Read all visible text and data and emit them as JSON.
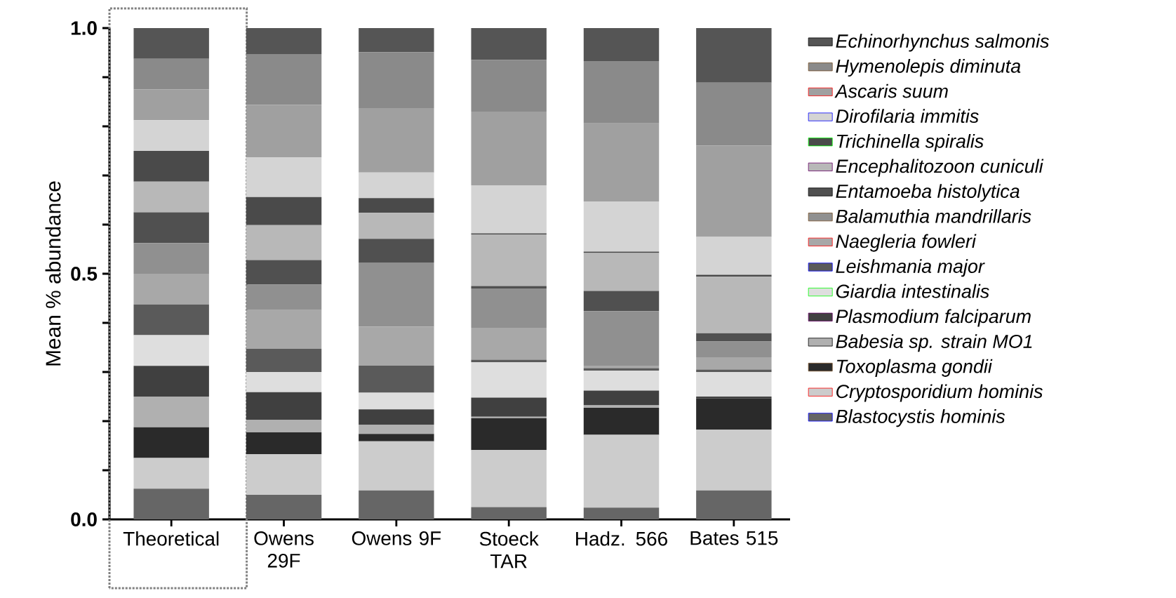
{
  "chart_data": {
    "type": "bar",
    "stacked": true,
    "ylabel": "Mean % abundance",
    "categories": [
      "Theoretical",
      "Owens 29F",
      "Owens 9F",
      "Stoeck TAR",
      "Hadz. 566",
      "Bates 515"
    ],
    "ylim": [
      0,
      1
    ],
    "yticks": [
      {
        "value": 0,
        "label": "0.0"
      },
      {
        "value": 0.1,
        "label": null
      },
      {
        "value": 0.2,
        "label": null
      },
      {
        "value": 0.3,
        "label": null
      },
      {
        "value": 0.4,
        "label": null
      },
      {
        "value": 0.5,
        "label": "0.5"
      },
      {
        "value": 0.6,
        "label": null
      },
      {
        "value": 0.7,
        "label": null
      },
      {
        "value": 0.8,
        "label": null
      },
      {
        "value": 0.9,
        "label": null
      },
      {
        "value": 1,
        "label": "1.0"
      }
    ],
    "legend": "right",
    "series": [
      {
        "name": "Blastocystis hominis",
        "color": "#666666",
        "values": [
          0.0625,
          0.05,
          0.059,
          0.025,
          0.024,
          0.059
        ]
      },
      {
        "name": "Cryptosporidium hominis",
        "color": "#cccccc",
        "values": [
          0.0625,
          0.083,
          0.1,
          0.116,
          0.148,
          0.124
        ]
      },
      {
        "name": "Toxoplasma gondii",
        "color": "#2a2a2a",
        "values": [
          0.0625,
          0.044,
          0.015,
          0.065,
          0.055,
          0.063
        ]
      },
      {
        "name": "Babesia sp. strain MO1",
        "color": "#b0b0b0",
        "values": [
          0.0625,
          0.026,
          0.019,
          0.003,
          0.005,
          null
        ]
      },
      {
        "name": "Plasmodium falciparum",
        "color": "#404040",
        "values": [
          0.0625,
          0.056,
          0.031,
          0.039,
          0.03,
          0.004
        ]
      },
      {
        "name": "Giardia intestinalis",
        "color": "#dedede",
        "values": [
          0.0625,
          0.041,
          0.034,
          0.072,
          0.041,
          0.05
        ]
      },
      {
        "name": "Leishmania major",
        "color": "#5a5a5a",
        "values": [
          0.0625,
          0.047,
          0.055,
          0.005,
          0.005,
          0.005
        ]
      },
      {
        "name": "Naegleria fowleri",
        "color": "#a8a8a8",
        "values": [
          0.0625,
          0.079,
          0.079,
          0.065,
          0.005,
          0.025
        ]
      },
      {
        "name": "Balamuthia mandrillaris",
        "color": "#909090",
        "values": [
          0.0625,
          0.052,
          0.131,
          0.08,
          0.111,
          0.032
        ]
      },
      {
        "name": "Entamoeba histolytica",
        "color": "#505050",
        "values": [
          0.0625,
          0.05,
          0.048,
          0.005,
          0.041,
          0.017
        ]
      },
      {
        "name": "Encephalitozoon cuniculi",
        "color": "#b8b8b8",
        "values": [
          0.0625,
          0.071,
          0.053,
          0.105,
          0.077,
          0.115
        ]
      },
      {
        "name": "Trichinella spiralis",
        "color": "#4a4a4a",
        "values": [
          0.0625,
          0.057,
          0.03,
          0.002,
          0.003,
          0.004
        ]
      },
      {
        "name": "Dirofilaria immitis",
        "color": "#d4d4d4",
        "values": [
          0.0625,
          0.081,
          0.052,
          0.098,
          0.102,
          0.077
        ]
      },
      {
        "name": "Ascaris suum",
        "color": "#a0a0a0",
        "values": [
          0.0625,
          0.107,
          0.131,
          0.15,
          0.159,
          0.186
        ]
      },
      {
        "name": "Hymenolepis diminuta",
        "color": "#8a8a8a",
        "values": [
          0.0625,
          0.103,
          0.114,
          0.105,
          0.127,
          0.128
        ]
      },
      {
        "name": "Echinorhynchus salmonis",
        "color": "#555555",
        "values": [
          0.0625,
          0.053,
          0.049,
          0.065,
          0.067,
          0.111
        ]
      }
    ]
  }
}
